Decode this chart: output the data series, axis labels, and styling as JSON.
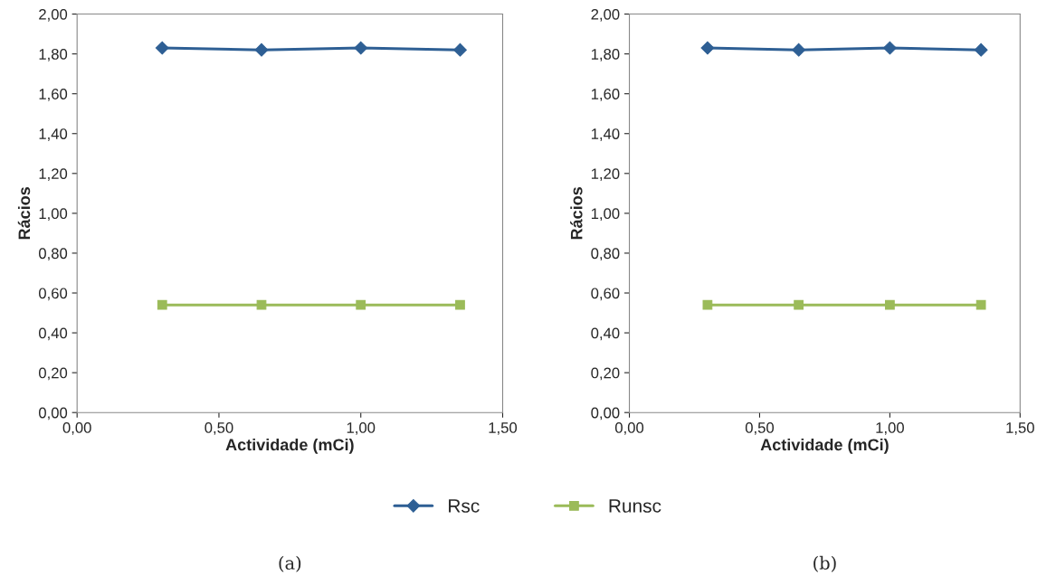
{
  "chart_data": [
    {
      "type": "line",
      "xlabel": "Actividade (mCi)",
      "ylabel": "Rácios",
      "x": [
        0.3,
        0.65,
        1.0,
        1.35
      ],
      "xlim": [
        0,
        1.5
      ],
      "xticks": [
        {
          "value": 0,
          "label": "0,00"
        },
        {
          "value": 0.5,
          "label": "0,50"
        },
        {
          "value": 1.0,
          "label": "1,00"
        },
        {
          "value": 1.5,
          "label": "1,50"
        }
      ],
      "ylim": [
        0,
        2
      ],
      "yticks": [
        {
          "value": 0,
          "label": "0,00"
        },
        {
          "value": 0.2,
          "label": "0,20"
        },
        {
          "value": 0.4,
          "label": "0,40"
        },
        {
          "value": 0.6,
          "label": "0,60"
        },
        {
          "value": 0.8,
          "label": "0,80"
        },
        {
          "value": 1.0,
          "label": "1,00"
        },
        {
          "value": 1.2,
          "label": "1,20"
        },
        {
          "value": 1.4,
          "label": "1,40"
        },
        {
          "value": 1.6,
          "label": "1,60"
        },
        {
          "value": 1.8,
          "label": "1,80"
        },
        {
          "value": 2.0,
          "label": "2,00"
        }
      ],
      "grid": false,
      "legend": "bottom",
      "annotations": [
        "(a)"
      ],
      "series": [
        {
          "name": "Rsc",
          "color": "#2e5f94",
          "marker": "diamond",
          "values": [
            1.83,
            1.82,
            1.83,
            1.82
          ]
        },
        {
          "name": "Runsc",
          "color": "#9bbb59",
          "marker": "square",
          "values": [
            0.54,
            0.54,
            0.54,
            0.54
          ]
        }
      ]
    },
    {
      "type": "line",
      "xlabel": "Actividade (mCi)",
      "ylabel": "Rácios",
      "x": [
        0.3,
        0.65,
        1.0,
        1.35
      ],
      "xlim": [
        0,
        1.5
      ],
      "xticks": [
        {
          "value": 0,
          "label": "0,00"
        },
        {
          "value": 0.5,
          "label": "0,50"
        },
        {
          "value": 1.0,
          "label": "1,00"
        },
        {
          "value": 1.5,
          "label": "1,50"
        }
      ],
      "ylim": [
        0,
        2
      ],
      "yticks": [
        {
          "value": 0,
          "label": "0,00"
        },
        {
          "value": 0.2,
          "label": "0,20"
        },
        {
          "value": 0.4,
          "label": "0,40"
        },
        {
          "value": 0.6,
          "label": "0,60"
        },
        {
          "value": 0.8,
          "label": "0,80"
        },
        {
          "value": 1.0,
          "label": "1,00"
        },
        {
          "value": 1.2,
          "label": "1,20"
        },
        {
          "value": 1.4,
          "label": "1,40"
        },
        {
          "value": 1.6,
          "label": "1,60"
        },
        {
          "value": 1.8,
          "label": "1,80"
        },
        {
          "value": 2.0,
          "label": "2,00"
        }
      ],
      "grid": false,
      "annotations": [
        "(b)"
      ],
      "series": [
        {
          "name": "Rsc",
          "color": "#2e5f94",
          "marker": "diamond",
          "values": [
            1.83,
            1.82,
            1.83,
            1.82
          ]
        },
        {
          "name": "Runsc",
          "color": "#9bbb59",
          "marker": "square",
          "values": [
            0.54,
            0.54,
            0.54,
            0.54
          ]
        }
      ]
    }
  ]
}
